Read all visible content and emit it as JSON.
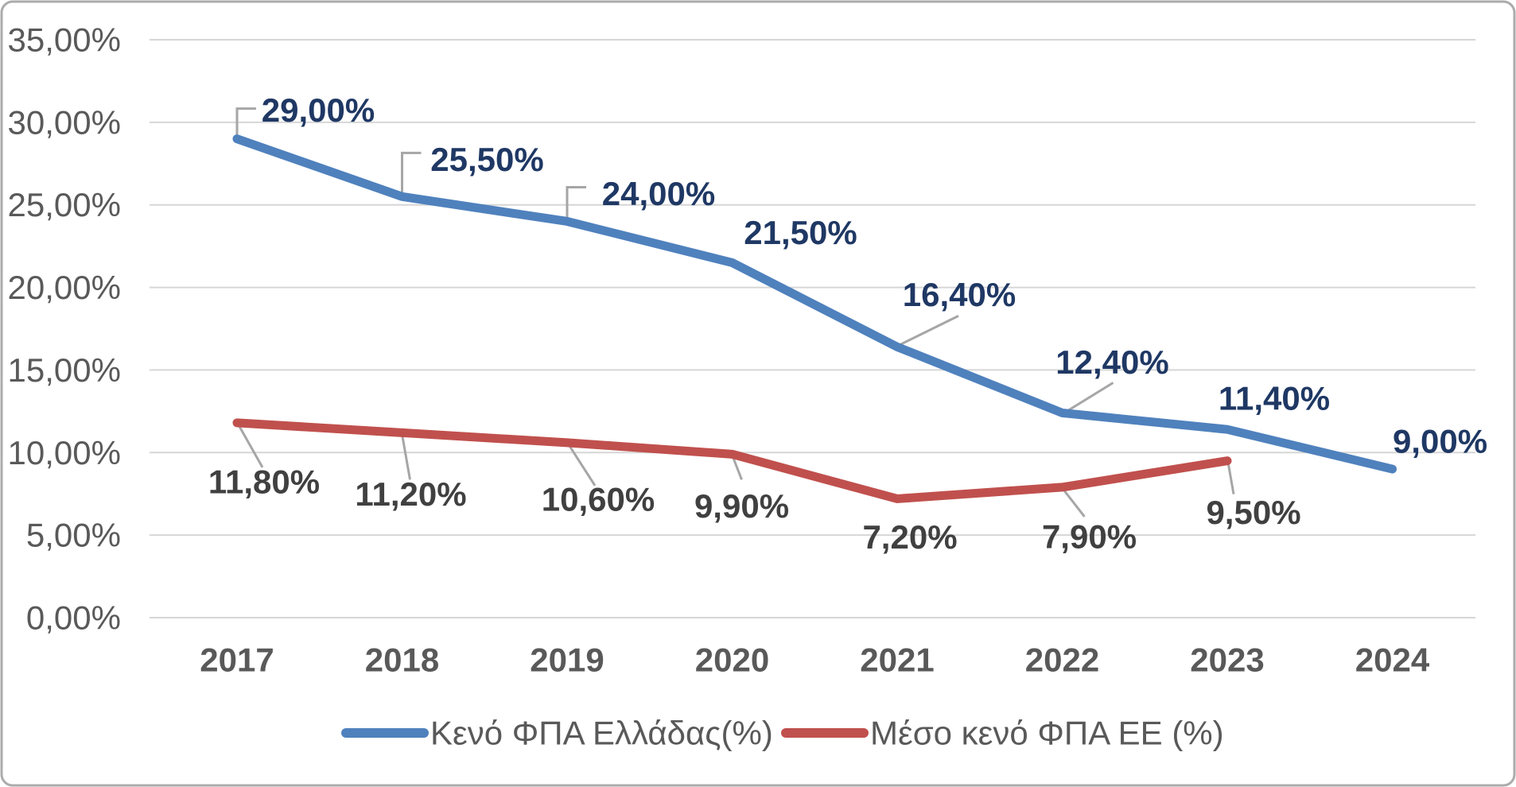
{
  "chart_data": {
    "type": "line",
    "title": "",
    "categories": [
      "2017",
      "2018",
      "2019",
      "2020",
      "2021",
      "2022",
      "2023",
      "2024"
    ],
    "y_axis": {
      "min": 0,
      "max": 35,
      "step": 5,
      "tick_labels": [
        "0,00%",
        "5,00%",
        "10,00%",
        "15,00%",
        "20,00%",
        "25,00%",
        "30,00%",
        "35,00%"
      ],
      "grid": true
    },
    "series": [
      {
        "name": "Κενό ΦΠΑ Ελλάδας(%)",
        "color": "#4F81BD",
        "label_color": "#1F3864",
        "values": [
          29.0,
          25.5,
          24.0,
          21.5,
          16.4,
          12.4,
          11.4,
          9.0
        ],
        "point_labels": [
          "29,00%",
          "25,50%",
          "24,00%",
          "21,50%",
          "16,40%",
          "12,40%",
          "11,40%",
          "9,00%"
        ]
      },
      {
        "name": "Μέσο κενό ΦΠΑ ΕΕ (%)",
        "color": "#C0504D",
        "label_color": "#404040",
        "values": [
          11.8,
          11.2,
          10.6,
          9.9,
          7.2,
          7.9,
          9.5
        ],
        "point_labels": [
          "11,80%",
          "11,20%",
          "10,60%",
          "9,90%",
          "7,20%",
          "7,90%",
          "9,50%"
        ]
      }
    ],
    "legend": {
      "position": "bottom",
      "entries": [
        "Κενό ΦΠΑ Ελλάδας(%)",
        "Μέσο κενό ΦΠΑ ΕΕ (%)"
      ]
    },
    "colors": {
      "axis_text": "#595959",
      "gridline": "#D6D6D6",
      "leader_line": "#A6A6A6",
      "frame_border": "#ABABAB",
      "background": "#FFFFFF"
    }
  }
}
